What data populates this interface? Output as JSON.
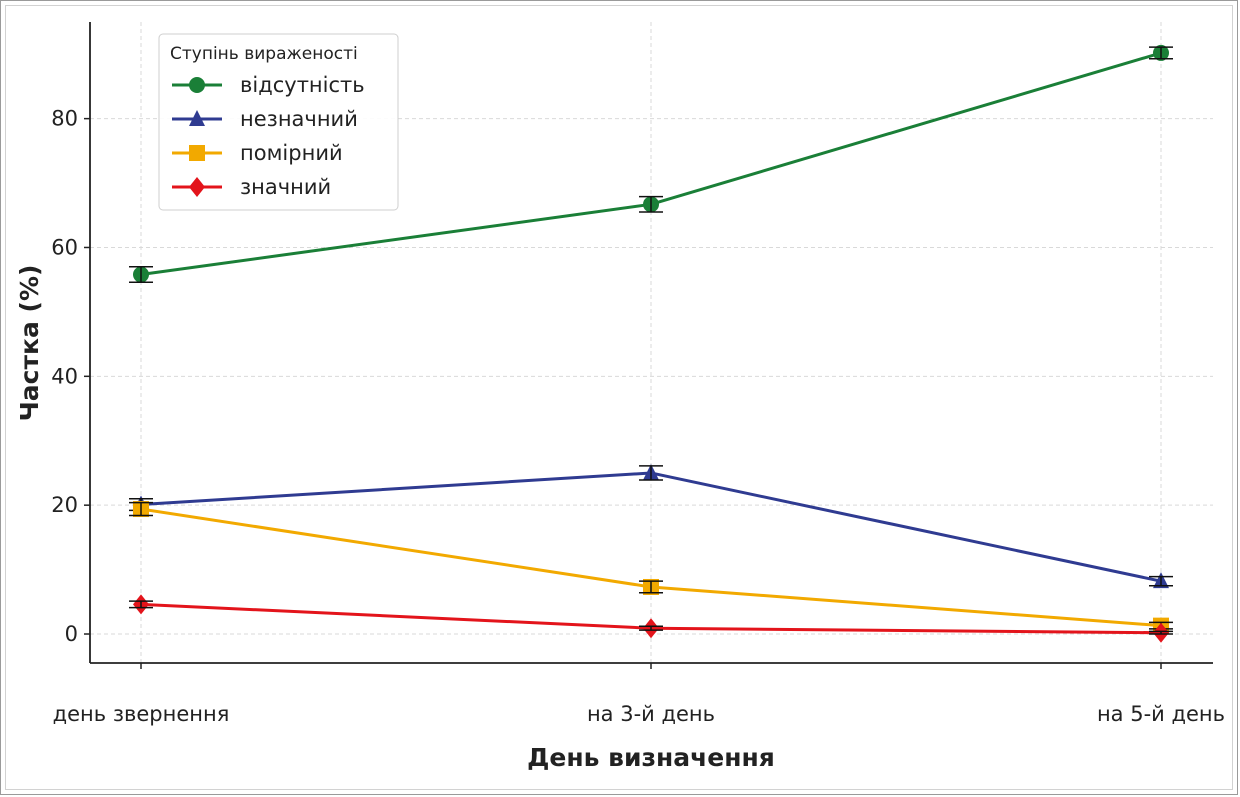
{
  "chart_data": {
    "type": "line",
    "title": "",
    "xlabel": "День визначення",
    "ylabel": "Частка (%)",
    "categories": [
      "день звернення",
      "на 3-й день",
      "на 5-й день"
    ],
    "ylim": [
      -4.5,
      95
    ],
    "yticks": [
      0,
      20,
      40,
      60,
      80
    ],
    "grid": true,
    "legend": {
      "title": "Ступінь вираженості",
      "position": "top-left"
    },
    "error_bars": true,
    "series": [
      {
        "name": "відсутність",
        "values": [
          55.8,
          66.7,
          90.2
        ],
        "errors": [
          1.2,
          1.2,
          0.9
        ],
        "color": "#1a7f37",
        "marker": "circle"
      },
      {
        "name": "незначний",
        "values": [
          20.1,
          25.0,
          8.2
        ],
        "errors": [
          0.9,
          1.1,
          0.7
        ],
        "color": "#2f3b91",
        "marker": "triangle"
      },
      {
        "name": "помірний",
        "values": [
          19.4,
          7.3,
          1.3
        ],
        "errors": [
          1.0,
          0.9,
          0.5
        ],
        "color": "#f2a900",
        "marker": "square"
      },
      {
        "name": "значний",
        "values": [
          4.6,
          0.9,
          0.2
        ],
        "errors": [
          0.5,
          0.3,
          0.2
        ],
        "color": "#e3141b",
        "marker": "diamond"
      }
    ]
  }
}
